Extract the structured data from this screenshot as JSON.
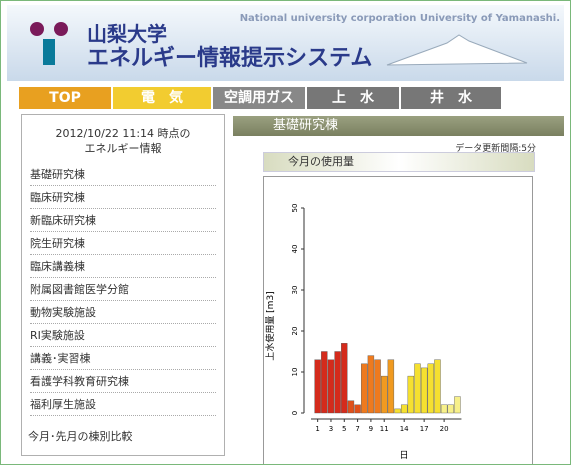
{
  "header": {
    "university": "山梨大学",
    "system": "エネルギー情報提示システム",
    "subtitle": "National university corporation University of Yamanashi."
  },
  "tabs": [
    "TOP",
    "電　気",
    "空調用ガス",
    "上　水",
    "井　水"
  ],
  "sidebar": {
    "timestamp": "2012/10/22 11:14 時点の",
    "timestamp_caption": "エネルギー情報",
    "buildings": [
      "基礎研究棟",
      "臨床研究棟",
      "新臨床研究棟",
      "院生研究棟",
      "臨床講義棟",
      "附属図書館医学分館",
      "動物実験施設",
      "RI実験施設",
      "講義･実習棟",
      "看護学科教育研究棟",
      "福利厚生施設"
    ],
    "comparison": "今月･先月の棟別比較"
  },
  "main": {
    "building": "基礎研究棟",
    "update_interval": "データ更新間隔:5分",
    "panel_title": "今月の使用量"
  },
  "chart_data": {
    "type": "bar",
    "y_label": "上水使用量 [m3]",
    "x_label": "日",
    "x": [
      1,
      2,
      3,
      4,
      5,
      6,
      7,
      8,
      9,
      10,
      11,
      12,
      13,
      14,
      15,
      16,
      17,
      18,
      19,
      20,
      21,
      22
    ],
    "values": [
      13,
      15,
      13,
      15,
      17,
      3,
      2,
      12,
      14,
      13,
      9,
      13,
      1,
      2,
      9,
      12,
      11,
      12,
      13,
      2,
      2,
      4
    ],
    "colors": [
      "#d42b1c",
      "#d42b1c",
      "#d42b1c",
      "#d42b1c",
      "#d42b1c",
      "#e0501a",
      "#e0501a",
      "#ee7a1e",
      "#ee7a1e",
      "#ee7a1e",
      "#f09a20",
      "#f09a20",
      "#f5e030",
      "#f5e030",
      "#f5e030",
      "#f5e030",
      "#f5e030",
      "#f5e030",
      "#f5e030",
      "#f7f08a",
      "#f7f08a",
      "#f7f08a"
    ],
    "xlim": [
      0,
      32
    ],
    "xticks": [
      1,
      3,
      5,
      7,
      9,
      11,
      14,
      17,
      20
    ],
    "ylim": [
      0,
      50
    ],
    "yticks": [
      0,
      10,
      20,
      30,
      40,
      50
    ]
  }
}
